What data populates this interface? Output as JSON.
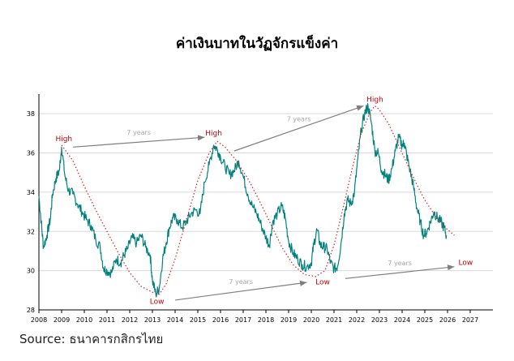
{
  "title": "ค่าเงินบาทในวัฏจักรแข็งค่า",
  "source": "Source: ธนาคารกสิกรไทย",
  "colors": {
    "line": "#00817f",
    "trend": "#d9302f",
    "arrow": "#7f7f7f",
    "annotation_red": "#c00000",
    "annotation_gray": "#a6a6a6",
    "grid": "#d9d9d9"
  },
  "chart_data": {
    "type": "line",
    "xlim": [
      2008,
      2028
    ],
    "ylim": [
      28,
      39
    ],
    "grid": "horizontal",
    "x_ticks": [
      "2008",
      "2009",
      "2010",
      "2011",
      "2012",
      "2013",
      "2014",
      "2015",
      "2016",
      "2017",
      "2018",
      "2019",
      "2020",
      "2021",
      "2022",
      "2023",
      "2024",
      "2025",
      "2026",
      "2027"
    ],
    "y_ticks": [
      "28",
      "30",
      "32",
      "34",
      "36",
      "38"
    ],
    "series": [
      {
        "x": [
          2008.0,
          2008.1,
          2008.2,
          2008.35,
          2008.5,
          2008.6,
          2008.75,
          2008.9,
          2009.0,
          2009.15,
          2009.3,
          2009.5,
          2009.7,
          2009.9,
          2010.1,
          2010.3,
          2010.5,
          2010.7,
          2010.85,
          2011.0,
          2011.2,
          2011.4,
          2011.6,
          2011.75,
          2011.9,
          2012.1,
          2012.3,
          2012.5,
          2012.7,
          2012.9,
          2013.0,
          2013.15,
          2013.3,
          2013.45,
          2013.6,
          2013.75,
          2013.9,
          2014.1,
          2014.3,
          2014.5,
          2014.7,
          2014.9,
          2015.1,
          2015.3,
          2015.5,
          2015.7,
          2015.85,
          2016.0,
          2016.2,
          2016.4,
          2016.6,
          2016.8,
          2017.0,
          2017.2,
          2017.4,
          2017.6,
          2017.8,
          2018.0,
          2018.15,
          2018.3,
          2018.5,
          2018.7,
          2018.85,
          2019.0,
          2019.2,
          2019.4,
          2019.6,
          2019.8,
          2020.0,
          2020.1,
          2020.25,
          2020.4,
          2020.55,
          2020.7,
          2020.85,
          2021.0,
          2021.15,
          2021.3,
          2021.45,
          2021.6,
          2021.75,
          2021.9,
          2022.05,
          2022.2,
          2022.35,
          2022.5,
          2022.65,
          2022.8,
          2022.95,
          2023.1,
          2023.25,
          2023.4,
          2023.55,
          2023.7,
          2023.85,
          2024.0,
          2024.1,
          2024.2,
          2024.35,
          2024.5,
          2024.65,
          2024.8,
          2024.95,
          2025.1,
          2025.25,
          2025.4,
          2025.55,
          2025.7,
          2025.85,
          2025.95
        ],
        "y": [
          33.8,
          32.5,
          31.2,
          31.8,
          32.6,
          33.9,
          34.7,
          35.1,
          36.3,
          34.8,
          34.1,
          33.9,
          33.4,
          33.0,
          32.6,
          32.3,
          31.6,
          31.2,
          30.1,
          30.0,
          29.9,
          30.6,
          30.4,
          30.8,
          31.1,
          31.7,
          31.4,
          31.8,
          31.2,
          30.8,
          29.5,
          28.8,
          29.1,
          30.6,
          31.4,
          32.2,
          32.7,
          32.6,
          32.2,
          32.5,
          32.9,
          33.1,
          32.9,
          34.5,
          35.4,
          36.4,
          36.2,
          35.8,
          35.3,
          34.9,
          35.1,
          35.6,
          34.8,
          33.9,
          33.3,
          32.9,
          32.3,
          31.7,
          31.3,
          32.5,
          32.9,
          33.3,
          32.7,
          31.5,
          30.9,
          30.6,
          30.3,
          30.2,
          30.4,
          31.3,
          32.1,
          31.3,
          31.2,
          31.1,
          30.4,
          30.1,
          30.2,
          31.3,
          32.9,
          33.6,
          33.4,
          34.0,
          35.7,
          37.2,
          38.0,
          38.4,
          37.5,
          36.1,
          36.0,
          35.1,
          34.9,
          34.6,
          35.2,
          36.1,
          36.8,
          36.4,
          36.5,
          35.9,
          35.1,
          34.3,
          33.2,
          32.5,
          31.8,
          32.0,
          32.5,
          33.0,
          32.7,
          32.5,
          32.2,
          31.8
        ]
      }
    ],
    "trend_curve": {
      "x": [
        2009.0,
        2009.5,
        2010.0,
        2010.5,
        2011.0,
        2011.5,
        2012.0,
        2012.5,
        2013.0,
        2013.3,
        2013.6,
        2014.0,
        2014.5,
        2015.0,
        2015.5,
        2015.85,
        2016.2,
        2016.7,
        2017.2,
        2017.7,
        2018.2,
        2018.7,
        2019.2,
        2019.7,
        2020.2,
        2020.6,
        2021.0,
        2021.4,
        2021.8,
        2022.2,
        2022.6,
        2022.8,
        2023.0,
        2023.4,
        2023.8,
        2024.2,
        2024.6,
        2025.0,
        2025.4,
        2025.8,
        2026.3
      ],
      "y": [
        36.4,
        35.6,
        34.3,
        33.1,
        32.0,
        30.9,
        29.9,
        29.2,
        28.9,
        28.8,
        29.3,
        30.6,
        32.6,
        34.6,
        36.0,
        36.6,
        36.3,
        35.6,
        34.7,
        33.6,
        32.4,
        31.2,
        30.3,
        29.8,
        29.7,
        30.0,
        31.3,
        33.2,
        35.2,
        37.0,
        38.1,
        38.4,
        38.2,
        37.5,
        36.5,
        35.5,
        34.5,
        33.6,
        32.9,
        32.3,
        31.8
      ]
    },
    "annotations": [
      {
        "text": "High",
        "x": 2009.1,
        "y": 36.6
      },
      {
        "text": "Low",
        "x": 2013.2,
        "y": 28.3
      },
      {
        "text": "High",
        "x": 2015.7,
        "y": 36.9
      },
      {
        "text": "Low",
        "x": 2020.5,
        "y": 29.3
      },
      {
        "text": "High",
        "x": 2022.8,
        "y": 38.6
      },
      {
        "text": "Low",
        "x": 2026.8,
        "y": 30.3
      }
    ],
    "arrows": [
      {
        "label": "7 years",
        "from": [
          2009.5,
          36.3
        ],
        "to": [
          2015.3,
          36.8
        ]
      },
      {
        "label": "7 years",
        "from": [
          2016.6,
          36.1
        ],
        "to": [
          2022.3,
          38.4
        ]
      },
      {
        "label": "7 years",
        "from": [
          2014.0,
          28.5
        ],
        "to": [
          2019.8,
          29.4
        ]
      },
      {
        "label": "7 years",
        "from": [
          2021.5,
          29.6
        ],
        "to": [
          2026.3,
          30.2
        ]
      }
    ]
  }
}
